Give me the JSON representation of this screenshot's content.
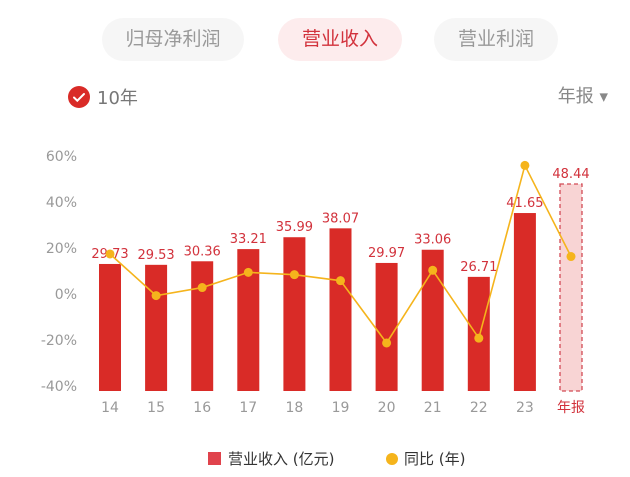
{
  "tabs": [
    {
      "label": "归母净利润",
      "active": false
    },
    {
      "label": "营业收入",
      "active": true
    },
    {
      "label": "营业利润",
      "active": false
    }
  ],
  "period": {
    "label": "10年",
    "checked": true,
    "icon": "check-circle-icon"
  },
  "report_type": {
    "label": "年报",
    "icon": "caret-down-icon"
  },
  "colors": {
    "bar": "#d92b27",
    "forecast_bar": "#f8d4d4",
    "forecast_border": "#d24a55",
    "line": "#f5b41c",
    "label": "#d2323c",
    "axis": "#999999"
  },
  "chart_data": {
    "type": "bar+line",
    "categories": [
      "14",
      "15",
      "16",
      "17",
      "18",
      "19",
      "20",
      "21",
      "22",
      "23",
      "年报"
    ],
    "series": [
      {
        "name": "营业收入 (亿元)",
        "type": "bar",
        "values": [
          29.73,
          29.53,
          30.36,
          33.21,
          35.99,
          38.07,
          29.97,
          33.06,
          26.71,
          41.65,
          48.44
        ],
        "labels": [
          "29.73",
          "29.53",
          "30.36",
          "33.21",
          "35.99",
          "38.07",
          "29.97",
          "33.06",
          "26.71",
          "41.65",
          "48.44"
        ],
        "forecast_last": true
      },
      {
        "name": "同比 (年)",
        "type": "line",
        "values": [
          17.4,
          -0.7,
          2.8,
          9.4,
          8.4,
          5.8,
          -21.3,
          10.3,
          -19.2,
          55.9,
          16.3
        ]
      }
    ],
    "y_ticks": [
      "60%",
      "40%",
      "20%",
      "0%",
      "-20%",
      "-40%"
    ],
    "ylim": [
      -40,
      60
    ],
    "bar_ylim": [
      0,
      55
    ],
    "legend": "bottom",
    "grid": false
  }
}
